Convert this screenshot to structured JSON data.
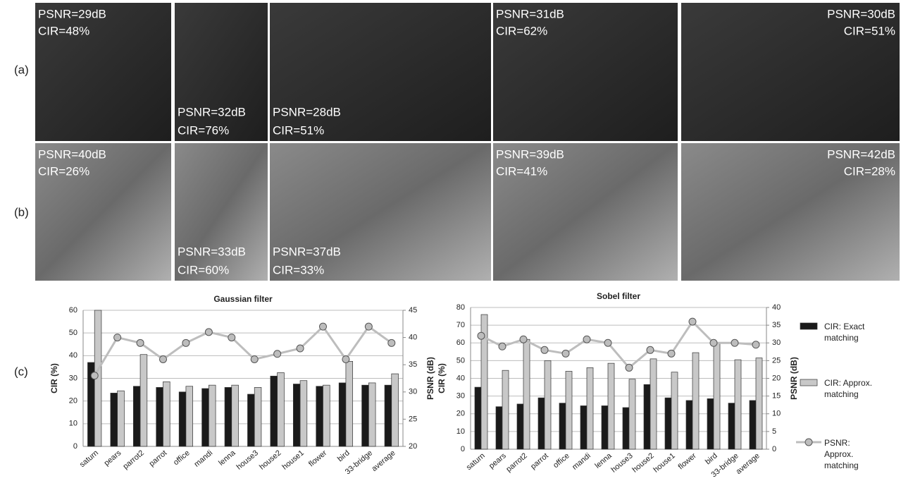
{
  "row_labels": [
    "(a)",
    "(b)",
    "(c)"
  ],
  "images": [
    [
      {
        "psnr": "PSNR=29dB",
        "cir": "CIR=48%"
      },
      {
        "psnr": "PSNR=32dB",
        "cir": "CIR=76%"
      },
      {
        "psnr": "PSNR=28dB",
        "cir": "CIR=51%"
      },
      {
        "psnr": "PSNR=31dB",
        "cir": "CIR=62%"
      },
      {
        "psnr": "PSNR=30dB",
        "cir": "CIR=51%"
      }
    ],
    [
      {
        "psnr": "PSNR=40dB",
        "cir": "CIR=26%"
      },
      {
        "psnr": "PSNR=33dB",
        "cir": "CIR=60%"
      },
      {
        "psnr": "PSNR=37dB",
        "cir": "CIR=33%"
      },
      {
        "psnr": "PSNR=39dB",
        "cir": "CIR=41%"
      },
      {
        "psnr": "PSNR=42dB",
        "cir": "CIR=28%"
      }
    ]
  ],
  "chart_data": [
    {
      "type": "bar",
      "title": "Gaussian filter",
      "y_label": "CIR (%)",
      "y2_label": "PSNR (dB)",
      "categories": [
        "saturn",
        "pears",
        "parrot2",
        "parrot",
        "office",
        "mandi",
        "lenna",
        "house3",
        "house2",
        "house1",
        "flower",
        "bird",
        "33-bridge",
        "average"
      ],
      "ylim": [
        0,
        60
      ],
      "yticks": [
        0,
        10,
        20,
        30,
        40,
        50,
        60
      ],
      "y2lim": [
        20,
        45
      ],
      "y2ticks": [
        20,
        25,
        30,
        35,
        40,
        45
      ],
      "grid": true,
      "series": [
        {
          "name": "CIR: Exact matching",
          "color": "#1a1a1a",
          "values": [
            37,
            23.5,
            26.5,
            26,
            24,
            25.5,
            26,
            23,
            31,
            27.5,
            26.5,
            28,
            27,
            27
          ]
        },
        {
          "name": "CIR: Approx. matching",
          "color": "#c8c8c8",
          "values": [
            60,
            24.5,
            40.5,
            28.5,
            26.5,
            27,
            27,
            26,
            32.5,
            29,
            27,
            37.5,
            28,
            32
          ]
        },
        {
          "name": "PSNR: Approx. matching",
          "color": "#bdbdbd",
          "axis": "y2",
          "values": [
            33,
            40,
            39,
            36,
            39,
            41,
            40,
            36,
            37,
            38,
            42,
            36,
            42,
            39
          ]
        }
      ]
    },
    {
      "type": "bar",
      "title": "Sobel filter",
      "y_label": "CIR (%)",
      "y2_label": "PSNR (dB)",
      "categories": [
        "saturn",
        "pears",
        "parrot2",
        "parrot",
        "office",
        "mandi",
        "lenna",
        "house3",
        "house2",
        "house1",
        "flower",
        "bird",
        "33-bridge",
        "average"
      ],
      "ylim": [
        0,
        80
      ],
      "yticks": [
        0,
        10,
        20,
        30,
        40,
        50,
        60,
        70,
        80
      ],
      "y2lim": [
        0,
        40
      ],
      "y2ticks": [
        0,
        5,
        10,
        15,
        20,
        25,
        30,
        35,
        40
      ],
      "grid": true,
      "series": [
        {
          "name": "CIR: Exact matching",
          "color": "#1a1a1a",
          "values": [
            35,
            24,
            25.5,
            29,
            26,
            24.5,
            24.5,
            23.5,
            36.5,
            29,
            27.5,
            28.5,
            26,
            27.5
          ]
        },
        {
          "name": "CIR: Approx. matching",
          "color": "#c8c8c8",
          "values": [
            76,
            44.5,
            62,
            50,
            44,
            46,
            48.5,
            39.5,
            51,
            43.5,
            54.5,
            60,
            50.5,
            51.5
          ]
        },
        {
          "name": "PSNR: Approx. matching",
          "color": "#bdbdbd",
          "axis": "y2",
          "values": [
            32,
            29,
            31,
            28,
            27,
            31,
            30,
            23,
            28,
            27,
            36,
            30,
            30,
            29.5
          ]
        }
      ]
    }
  ]
}
